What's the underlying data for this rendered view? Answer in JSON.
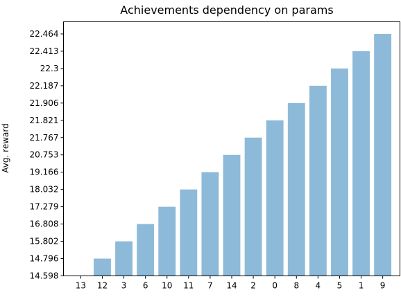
{
  "chart_data": {
    "type": "bar",
    "title": "Achievements dependency on params",
    "xlabel": "",
    "ylabel": "Avg. reward",
    "categories": [
      "13",
      "12",
      "3",
      "6",
      "10",
      "11",
      "7",
      "14",
      "2",
      "0",
      "8",
      "4",
      "5",
      "1",
      "9"
    ],
    "values": [
      14.598,
      14.796,
      15.802,
      16.808,
      17.279,
      18.032,
      19.166,
      20.753,
      21.767,
      21.821,
      21.906,
      22.187,
      22.3,
      22.413,
      22.464
    ],
    "y_tick_labels": [
      "14.598",
      "14.796",
      "15.802",
      "16.808",
      "17.279",
      "18.032",
      "19.166",
      "20.753",
      "21.767",
      "21.821",
      "21.906",
      "22.187",
      "22.3",
      "22.413",
      "22.464"
    ],
    "bar_color": "#8ebad9",
    "grid": false,
    "legend": "none"
  }
}
